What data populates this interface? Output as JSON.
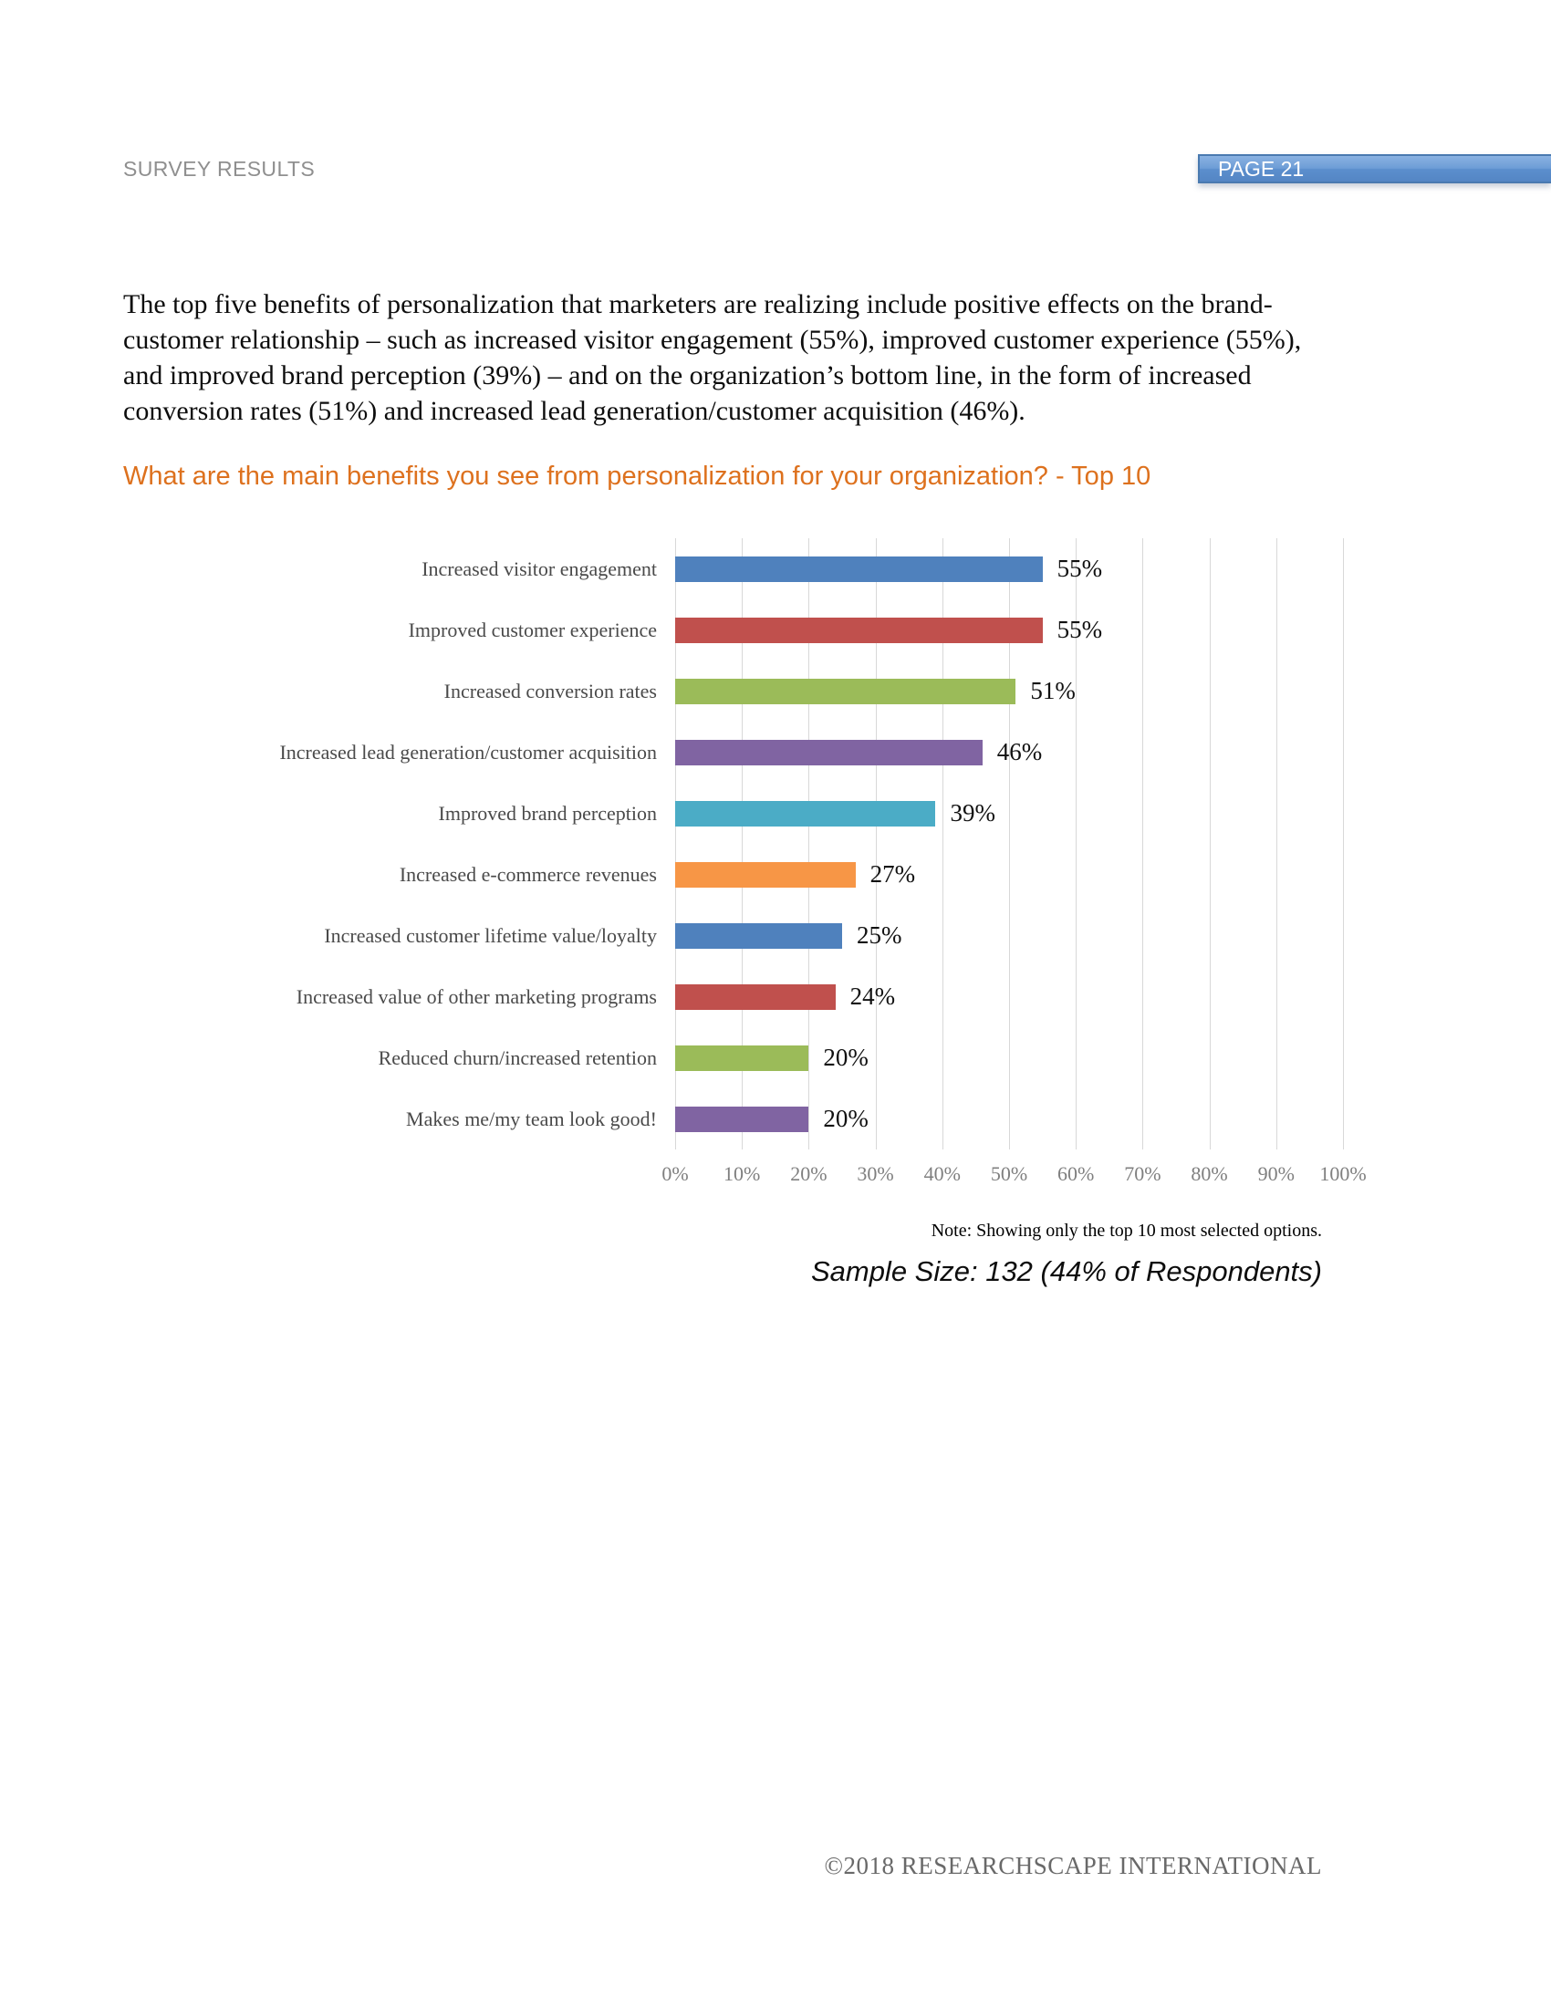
{
  "header": {
    "label": "SURVEY RESULTS",
    "page_badge": "PAGE 21"
  },
  "intro_paragraph": "The top five benefits of personalization that marketers are realizing include positive effects on the brand-customer relationship – such as increased visitor engagement (55%), improved customer experience (55%), and improved brand perception (39%) – and on the organization’s bottom line, in the form of increased conversion rates (51%) and increased lead generation/customer acquisition (46%).",
  "question_heading": "What are the main benefits you see from personalization for your organization? - Top 10",
  "chart_data": {
    "type": "bar",
    "orientation": "horizontal",
    "title": "What are the main benefits you see from personalization for your organization? - Top 10",
    "categories": [
      "Increased visitor engagement",
      "Improved customer experience",
      "Increased conversion rates",
      "Increased lead generation/customer acquisition",
      "Improved brand perception",
      "Increased e-commerce revenues",
      "Increased customer lifetime value/loyalty",
      "Increased value of other marketing programs",
      "Reduced churn/increased retention",
      "Makes me/my team look good!"
    ],
    "values": [
      55,
      55,
      51,
      46,
      39,
      27,
      25,
      24,
      20,
      20
    ],
    "value_labels": [
      "55%",
      "55%",
      "51%",
      "46%",
      "39%",
      "27%",
      "25%",
      "24%",
      "20%",
      "20%"
    ],
    "bar_colors": [
      "#4F81BD",
      "#C0504D",
      "#9BBB59",
      "#8064A2",
      "#4BACC6",
      "#F79646",
      "#4F81BD",
      "#C0504D",
      "#9BBB59",
      "#8064A2"
    ],
    "xlim": [
      0,
      100
    ],
    "x_ticks": [
      "0%",
      "10%",
      "20%",
      "30%",
      "40%",
      "50%",
      "60%",
      "70%",
      "80%",
      "90%",
      "100%"
    ],
    "grid": "vertical",
    "gridline_color": "#D8D8D8",
    "legend": "none"
  },
  "note": "Note: Showing only the top 10 most selected options.",
  "sample_size": "Sample Size: 132 (44% of Respondents)",
  "footer": "©2018 RESEARCHSCAPE INTERNATIONAL",
  "colors": {
    "heading_orange": "#DD711E",
    "badge_blue": "#5B8ECD",
    "header_gray": "#8F8F8F",
    "footer_gray": "#696969"
  }
}
